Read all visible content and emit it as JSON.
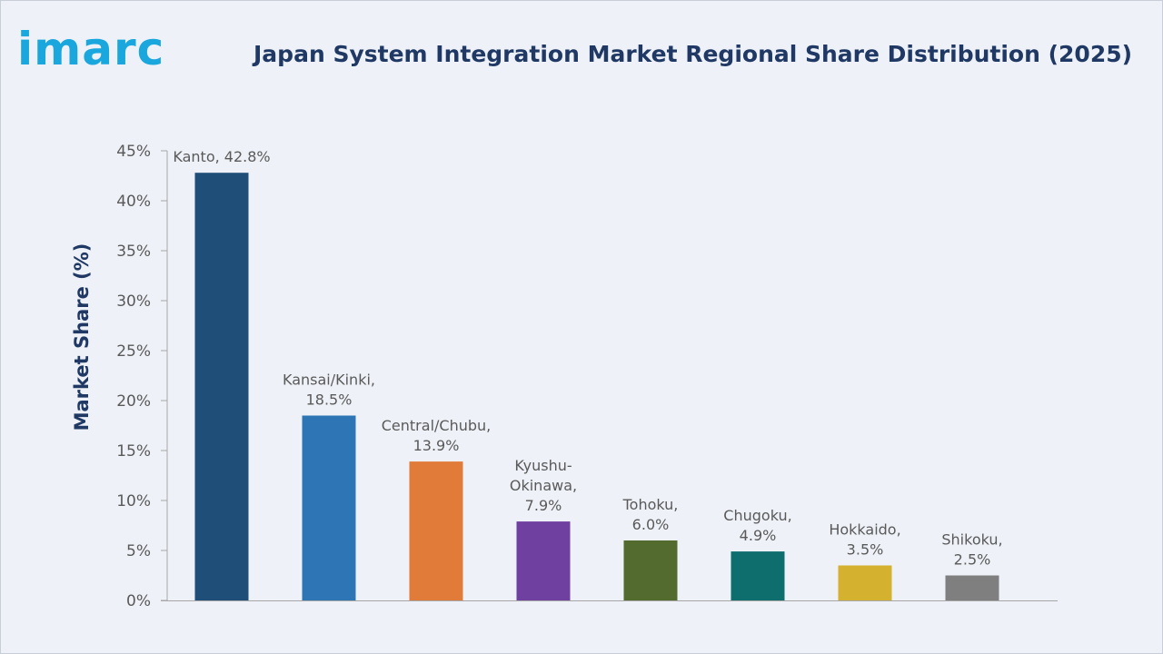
{
  "logo": {
    "text": "imarc",
    "color": "#1aa7dd"
  },
  "title": "Japan System Integration Market Regional Share Distribution (2025)",
  "title_color": "#1f3864",
  "chart_data": {
    "type": "bar",
    "title": "Japan System Integration Market Regional Share Distribution (2025)",
    "xlabel": "",
    "ylabel": "Market Share (%)",
    "ylim": [
      0,
      45
    ],
    "yticks": [
      0,
      5,
      10,
      15,
      20,
      25,
      30,
      35,
      40,
      45
    ],
    "ytick_labels": [
      "0%",
      "5%",
      "10%",
      "15%",
      "20%",
      "25%",
      "30%",
      "35%",
      "40%",
      "45%"
    ],
    "grid": false,
    "legend": "none",
    "categories": [
      "Kanto",
      "Kansai/Kinki",
      "Central/Chubu",
      "Kyushu-Okinawa",
      "Tohoku",
      "Chugoku",
      "Hokkaido",
      "Shikoku"
    ],
    "values": [
      42.8,
      18.5,
      13.9,
      7.9,
      6.0,
      4.9,
      3.5,
      2.5
    ],
    "data_labels": [
      [
        "Kanto, 42.8%"
      ],
      [
        "Kansai/Kinki,",
        "18.5%"
      ],
      [
        "Central/Chubu,",
        "13.9%"
      ],
      [
        "Kyushu-",
        "Okinawa,",
        "7.9%"
      ],
      [
        "Tohoku,",
        "6.0%"
      ],
      [
        "Chugoku,",
        "4.9%"
      ],
      [
        "Hokkaido,",
        "3.5%"
      ],
      [
        "Shikoku,",
        "2.5%"
      ]
    ],
    "colors": [
      "#1f4e79",
      "#2e75b6",
      "#e07b39",
      "#7040a0",
      "#536b2e",
      "#0e6e6e",
      "#d4b22f",
      "#7f7f7f"
    ]
  }
}
